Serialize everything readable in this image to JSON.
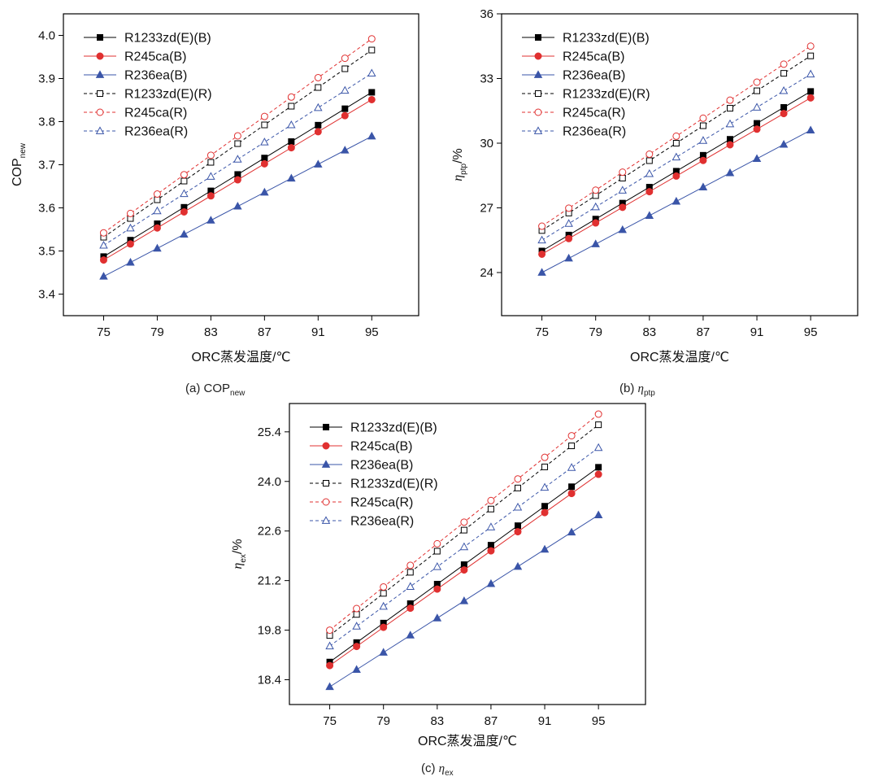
{
  "chart_data": [
    {
      "type": "line",
      "panel": "a",
      "caption_prefix": "(a) ",
      "caption_main": "COP",
      "caption_sub": "new",
      "ylabel_main": "COP",
      "ylabel_sub": "new",
      "ylabel_suffix": "",
      "ylabel_italic": false,
      "xlabel": "ORC蒸发温度/℃",
      "x": [
        75,
        77,
        79,
        81,
        83,
        85,
        87,
        89,
        91,
        93,
        95
      ],
      "xticks": [
        75,
        79,
        83,
        87,
        91,
        95
      ],
      "xlim": [
        72,
        98.5
      ],
      "ylim": [
        3.35,
        4.05
      ],
      "yticks": [
        3.4,
        3.5,
        3.6,
        3.7,
        3.8,
        3.9,
        4.0
      ],
      "ytick_labels": [
        "3.4",
        "3.5",
        "3.6",
        "3.7",
        "3.8",
        "3.9",
        "4.0"
      ],
      "legend_position": "top-left",
      "series": [
        {
          "name": "R1233zd(E)(B)",
          "color": "#000000",
          "marker": "square",
          "filled": true,
          "dashed": false,
          "start": 3.487,
          "end": 3.868
        },
        {
          "name": "R245ca(B)",
          "color": "#e03030",
          "marker": "circle",
          "filled": true,
          "dashed": false,
          "start": 3.479,
          "end": 3.851
        },
        {
          "name": "R236ea(B)",
          "color": "#3a55a8",
          "marker": "triangle",
          "filled": true,
          "dashed": false,
          "start": 3.441,
          "end": 3.766
        },
        {
          "name": "R1233zd(E)(R)",
          "color": "#000000",
          "marker": "square",
          "filled": false,
          "dashed": true,
          "start": 3.532,
          "end": 3.966
        },
        {
          "name": "R245ca(R)",
          "color": "#e03030",
          "marker": "circle",
          "filled": false,
          "dashed": true,
          "start": 3.542,
          "end": 3.992
        },
        {
          "name": "R236ea(R)",
          "color": "#3a55a8",
          "marker": "triangle",
          "filled": false,
          "dashed": true,
          "start": 3.513,
          "end": 3.912
        }
      ]
    },
    {
      "type": "line",
      "panel": "b",
      "caption_prefix": "(b) ",
      "caption_main": "η",
      "caption_sub": "ptp",
      "ylabel_main": "η",
      "ylabel_sub": "ptp",
      "ylabel_suffix": "/%",
      "ylabel_italic": true,
      "xlabel": "ORC蒸发温度/℃",
      "x": [
        75,
        77,
        79,
        81,
        83,
        85,
        87,
        89,
        91,
        93,
        95
      ],
      "xticks": [
        75,
        79,
        83,
        87,
        91,
        95
      ],
      "xlim": [
        72,
        98.5
      ],
      "ylim": [
        22,
        36
      ],
      "yticks": [
        24,
        27,
        30,
        33,
        36
      ],
      "ytick_labels": [
        "24",
        "27",
        "30",
        "33",
        "36"
      ],
      "legend_position": "top-left",
      "series": [
        {
          "name": "R1233zd(E)(B)",
          "color": "#000000",
          "marker": "square",
          "filled": true,
          "dashed": false,
          "start": 25.0,
          "end": 32.4
        },
        {
          "name": "R245ca(B)",
          "color": "#e03030",
          "marker": "circle",
          "filled": true,
          "dashed": false,
          "start": 24.85,
          "end": 32.1
        },
        {
          "name": "R236ea(B)",
          "color": "#3a55a8",
          "marker": "triangle",
          "filled": true,
          "dashed": false,
          "start": 24.0,
          "end": 30.6
        },
        {
          "name": "R1233zd(E)(R)",
          "color": "#000000",
          "marker": "square",
          "filled": false,
          "dashed": true,
          "start": 25.95,
          "end": 34.05
        },
        {
          "name": "R245ca(R)",
          "color": "#e03030",
          "marker": "circle",
          "filled": false,
          "dashed": true,
          "start": 26.15,
          "end": 34.5
        },
        {
          "name": "R236ea(R)",
          "color": "#3a55a8",
          "marker": "triangle",
          "filled": false,
          "dashed": true,
          "start": 25.5,
          "end": 33.2
        }
      ]
    },
    {
      "type": "line",
      "panel": "c",
      "caption_prefix": "(c) ",
      "caption_main": "η",
      "caption_sub": "ex",
      "ylabel_main": "η",
      "ylabel_sub": "ex",
      "ylabel_suffix": "/%",
      "ylabel_italic": true,
      "xlabel": "ORC蒸发温度/℃",
      "x": [
        75,
        77,
        79,
        81,
        83,
        85,
        87,
        89,
        91,
        93,
        95
      ],
      "xticks": [
        75,
        79,
        83,
        87,
        91,
        95
      ],
      "xlim": [
        72,
        98.5
      ],
      "ylim": [
        17.7,
        26.2
      ],
      "yticks": [
        18.4,
        19.8,
        21.2,
        22.6,
        24.0,
        25.4
      ],
      "ytick_labels": [
        "18.4",
        "19.8",
        "21.2",
        "22.6",
        "24.0",
        "25.4"
      ],
      "legend_position": "top-left",
      "series": [
        {
          "name": "R1233zd(E)(B)",
          "color": "#000000",
          "marker": "square",
          "filled": true,
          "dashed": false,
          "start": 18.9,
          "end": 24.4
        },
        {
          "name": "R245ca(B)",
          "color": "#e03030",
          "marker": "circle",
          "filled": true,
          "dashed": false,
          "start": 18.8,
          "end": 24.2
        },
        {
          "name": "R236ea(B)",
          "color": "#3a55a8",
          "marker": "triangle",
          "filled": true,
          "dashed": false,
          "start": 18.2,
          "end": 23.05
        },
        {
          "name": "R1233zd(E)(R)",
          "color": "#000000",
          "marker": "square",
          "filled": false,
          "dashed": true,
          "start": 19.65,
          "end": 25.6
        },
        {
          "name": "R245ca(R)",
          "color": "#e03030",
          "marker": "circle",
          "filled": false,
          "dashed": true,
          "start": 19.8,
          "end": 25.9
        },
        {
          "name": "R236ea(R)",
          "color": "#3a55a8",
          "marker": "triangle",
          "filled": false,
          "dashed": true,
          "start": 19.35,
          "end": 24.95
        }
      ]
    }
  ]
}
